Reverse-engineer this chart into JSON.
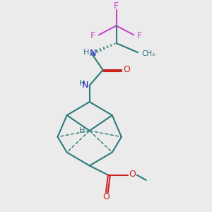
{
  "bg_color": "#ebebeb",
  "bond_color": "#2e7b7b",
  "N_color": "#2222cc",
  "O_color": "#cc2222",
  "F_color": "#cc44cc",
  "H_color": "#2e7b7b",
  "figsize": [
    3.0,
    3.0
  ],
  "dpi": 100,
  "xlim": [
    0,
    10
  ],
  "ylim": [
    0,
    10
  ]
}
